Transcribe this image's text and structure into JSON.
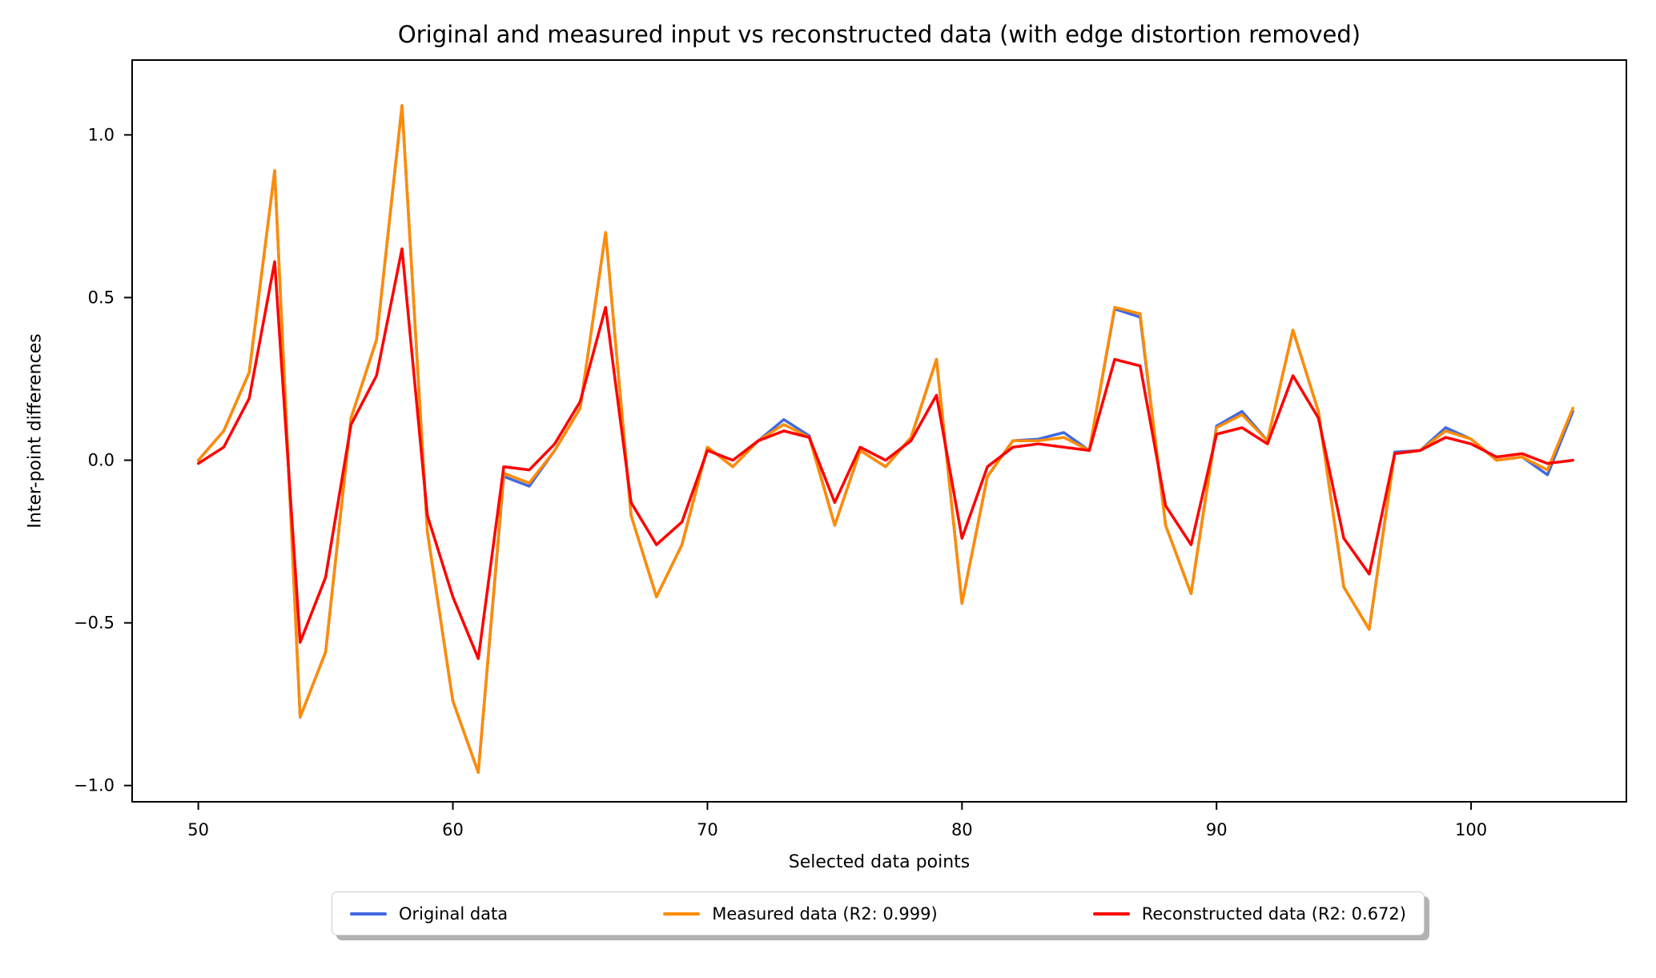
{
  "figure": {
    "title": "Original and measured input vs reconstructed data (with edge distortion removed)",
    "xlabel": "Selected data points",
    "ylabel": "Inter-point differences"
  },
  "chart_data": {
    "type": "line",
    "title": "Original and measured input vs reconstructed data (with edge distortion removed)",
    "xlabel": "Selected data points",
    "ylabel": "Inter-point differences",
    "grid": false,
    "legend_position": "lower center, outside plot",
    "xlim": [
      47.4,
      106.1
    ],
    "ylim": [
      -1.05,
      1.23
    ],
    "xticks": {
      "values": [
        50,
        60,
        70,
        80,
        90,
        100
      ],
      "labels": [
        "50",
        "60",
        "70",
        "80",
        "90",
        "100"
      ]
    },
    "yticks": {
      "values": [
        1.0,
        0.5,
        0.0,
        -0.5,
        -1.0
      ],
      "labels": [
        "1.0",
        "0.5",
        "0.0",
        "−0.5",
        "−1.0"
      ]
    },
    "x": [
      50,
      51,
      52,
      53,
      54,
      55,
      56,
      57,
      58,
      59,
      60,
      61,
      62,
      63,
      64,
      65,
      66,
      67,
      68,
      69,
      70,
      71,
      72,
      73,
      74,
      75,
      76,
      77,
      78,
      79,
      80,
      81,
      82,
      83,
      84,
      85,
      86,
      87,
      88,
      89,
      90,
      91,
      92,
      93,
      94,
      95,
      96,
      97,
      98,
      99,
      100,
      101,
      102,
      103,
      104
    ],
    "series": [
      {
        "name": "Original data",
        "color": "#4169e1",
        "values": [
          0.0,
          0.09,
          0.27,
          0.89,
          -0.79,
          -0.59,
          0.13,
          0.37,
          1.09,
          -0.22,
          -0.74,
          -0.96,
          -0.05,
          -0.08,
          0.03,
          0.16,
          0.7,
          -0.17,
          -0.42,
          -0.26,
          0.04,
          -0.02,
          0.06,
          0.125,
          0.075,
          -0.2,
          0.03,
          -0.02,
          0.07,
          0.31,
          -0.44,
          -0.05,
          0.06,
          0.065,
          0.085,
          0.03,
          0.465,
          0.44,
          -0.2,
          -0.41,
          0.105,
          0.15,
          0.06,
          0.4,
          0.15,
          -0.39,
          -0.52,
          0.025,
          0.03,
          0.1,
          0.065,
          0.0,
          0.01,
          -0.045,
          0.15
        ]
      },
      {
        "name": "Measured data (R2: 0.999)",
        "color": "#ff8c00",
        "values": [
          0.0,
          0.09,
          0.27,
          0.89,
          -0.79,
          -0.59,
          0.13,
          0.37,
          1.09,
          -0.22,
          -0.74,
          -0.96,
          -0.04,
          -0.07,
          0.03,
          0.16,
          0.7,
          -0.17,
          -0.42,
          -0.26,
          0.04,
          -0.02,
          0.06,
          0.11,
          0.07,
          -0.2,
          0.03,
          -0.02,
          0.07,
          0.31,
          -0.44,
          -0.05,
          0.06,
          0.06,
          0.07,
          0.03,
          0.47,
          0.45,
          -0.2,
          -0.41,
          0.1,
          0.14,
          0.06,
          0.4,
          0.15,
          -0.39,
          -0.52,
          0.02,
          0.03,
          0.09,
          0.065,
          0.0,
          0.01,
          -0.03,
          0.16
        ]
      },
      {
        "name": "Reconstructed data (R2: 0.672)",
        "color": "#ff0000",
        "values": [
          -0.01,
          0.04,
          0.19,
          0.61,
          -0.56,
          -0.36,
          0.11,
          0.26,
          0.65,
          -0.17,
          -0.42,
          -0.61,
          -0.02,
          -0.03,
          0.05,
          0.18,
          0.47,
          -0.13,
          -0.26,
          -0.19,
          0.03,
          0.0,
          0.06,
          0.09,
          0.07,
          -0.13,
          0.04,
          0.0,
          0.06,
          0.2,
          -0.24,
          -0.02,
          0.04,
          0.05,
          0.04,
          0.03,
          0.31,
          0.29,
          -0.14,
          -0.26,
          0.08,
          0.1,
          0.05,
          0.26,
          0.13,
          -0.24,
          -0.35,
          0.02,
          0.03,
          0.07,
          0.05,
          0.01,
          0.02,
          -0.01,
          0.0
        ]
      }
    ],
    "line_width": 3.5
  }
}
